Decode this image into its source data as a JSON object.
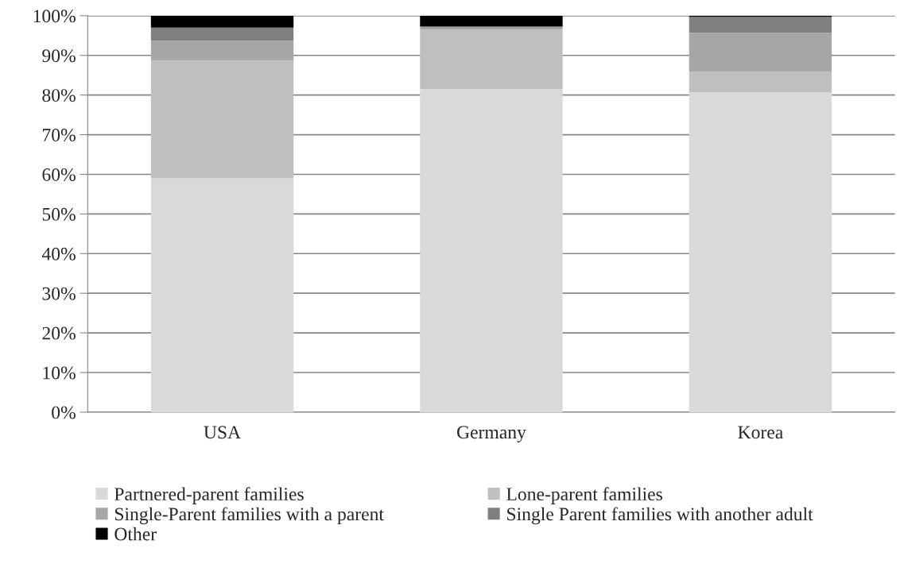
{
  "chart_data": {
    "type": "bar",
    "stacked": true,
    "categories": [
      "USA",
      "Germany",
      "Korea"
    ],
    "series": [
      {
        "name": "Partnered-parent families",
        "color": "#d9d9d9",
        "values": [
          59,
          81.5,
          80.7
        ]
      },
      {
        "name": "Lone-parent families",
        "color": "#bfbfbf",
        "values": [
          29.7,
          15,
          5.2
        ]
      },
      {
        "name": "Single-Parent families with a parent",
        "color": "#a6a6a6",
        "values": [
          5,
          0.5,
          9.8
        ]
      },
      {
        "name": "Single Parent families with another adult",
        "color": "#808080",
        "values": [
          3.3,
          0.3,
          4
        ]
      },
      {
        "name": "Other",
        "color": "#000000",
        "values": [
          3,
          2.7,
          0.3
        ]
      }
    ],
    "ylim": [
      0,
      100
    ],
    "yticks": [
      {
        "value": 0,
        "label": "0%"
      },
      {
        "value": 10,
        "label": "10%"
      },
      {
        "value": 20,
        "label": "20%"
      },
      {
        "value": 30,
        "label": "30%"
      },
      {
        "value": 40,
        "label": "40%"
      },
      {
        "value": 50,
        "label": "50%"
      },
      {
        "value": 60,
        "label": "60%"
      },
      {
        "value": 70,
        "label": "70%"
      },
      {
        "value": 80,
        "label": "80%"
      },
      {
        "value": 90,
        "label": "90%"
      },
      {
        "value": 100,
        "label": "100%"
      }
    ],
    "grid": "y",
    "legend": "bottom"
  }
}
